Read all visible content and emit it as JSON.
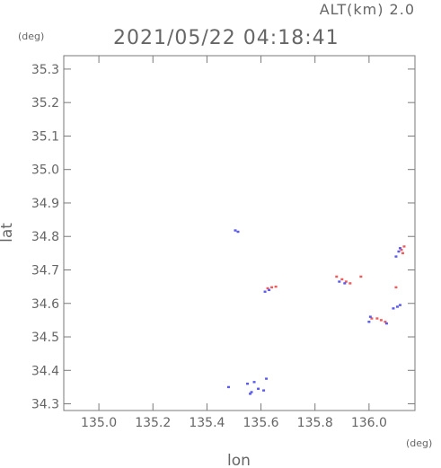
{
  "chart_data": {
    "type": "scatter",
    "title": "2021/05/22 04:18:41",
    "subtitle": "ALT(km) 2.0",
    "xlabel": "lon",
    "ylabel": "lat",
    "x_unit": "(deg)",
    "y_unit": "(deg)",
    "xlim": [
      134.87,
      136.17
    ],
    "ylim": [
      34.28,
      35.34
    ],
    "x_ticks": [
      135.0,
      135.2,
      135.4,
      135.6,
      135.8,
      136.0
    ],
    "x_tick_labels": [
      "135.0",
      "135.2",
      "135.4",
      "135.6",
      "135.8",
      "136.0"
    ],
    "y_ticks": [
      34.3,
      34.4,
      34.5,
      34.6,
      34.7,
      34.8,
      34.9,
      35.0,
      35.1,
      35.2,
      35.3
    ],
    "y_tick_labels": [
      "34.3",
      "34.4",
      "34.5",
      "34.6",
      "34.7",
      "34.8",
      "34.9",
      "35.0",
      "35.1",
      "35.2",
      "35.3"
    ],
    "grid": false,
    "series": [
      {
        "color": "#f05a5a",
        "points": [
          [
            135.625,
            34.645
          ],
          [
            135.64,
            34.648
          ],
          [
            135.655,
            34.65
          ],
          [
            135.88,
            34.68
          ],
          [
            135.9,
            34.672
          ],
          [
            135.915,
            34.665
          ],
          [
            135.93,
            34.66
          ],
          [
            135.97,
            34.68
          ],
          [
            136.03,
            34.555
          ],
          [
            136.045,
            34.55
          ],
          [
            136.06,
            34.545
          ],
          [
            136.1,
            34.648
          ],
          [
            136.12,
            34.76
          ],
          [
            136.125,
            34.75
          ],
          [
            136.13,
            34.77
          ],
          [
            136.01,
            34.555
          ]
        ]
      },
      {
        "color": "#5a5af0",
        "points": [
          [
            135.505,
            34.818
          ],
          [
            135.515,
            34.814
          ],
          [
            135.615,
            34.635
          ],
          [
            135.63,
            34.64
          ],
          [
            135.89,
            34.665
          ],
          [
            135.91,
            34.66
          ],
          [
            136.0,
            34.545
          ],
          [
            136.005,
            34.56
          ],
          [
            136.065,
            34.54
          ],
          [
            136.105,
            34.59
          ],
          [
            136.115,
            34.595
          ],
          [
            136.09,
            34.585
          ],
          [
            136.1,
            34.74
          ],
          [
            136.115,
            34.765
          ],
          [
            136.11,
            34.755
          ],
          [
            135.56,
            34.33
          ],
          [
            135.565,
            34.335
          ],
          [
            135.59,
            34.345
          ],
          [
            135.61,
            34.34
          ],
          [
            135.48,
            34.35
          ],
          [
            135.55,
            34.36
          ],
          [
            135.575,
            34.365
          ],
          [
            135.62,
            34.375
          ]
        ]
      }
    ]
  }
}
